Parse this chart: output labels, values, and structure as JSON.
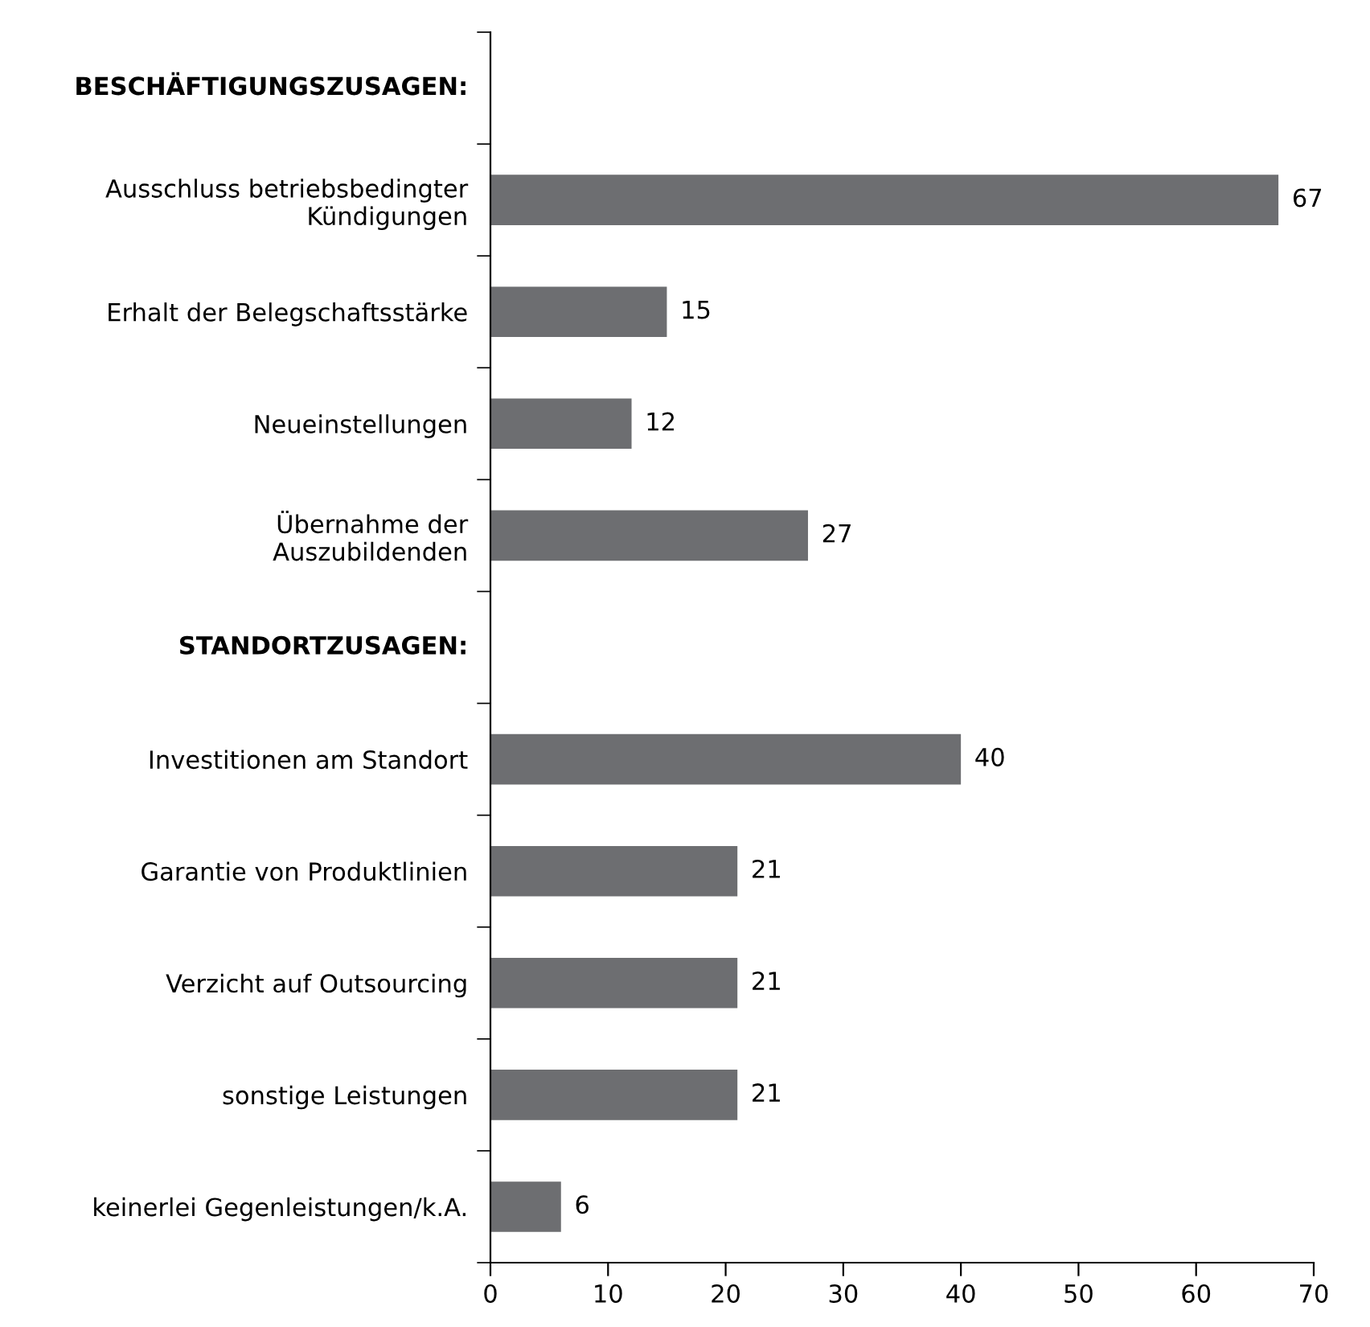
{
  "chart_data": {
    "type": "bar",
    "orientation": "horizontal",
    "categories": [
      null,
      "Ausschluss betriebsbedingter\nKündigungen",
      "Erhalt der Belegschaftsstärke",
      "Neueinstellungen",
      "Übernahme der\nAuszubildenden",
      null,
      "Investitionen am Standort",
      "Garantie von Produktlinien",
      "Verzicht auf Outsourcing",
      "sonstige Leistungen",
      "keinerlei Gegenleistungen/k.A."
    ],
    "values": [
      null,
      67,
      15,
      12,
      27,
      null,
      40,
      21,
      21,
      21,
      6
    ],
    "annotations": [
      "BESCHÄFTIGUNGSZUSAGEN:",
      "STANDORTZUSAGEN:"
    ],
    "color": "#6d6e71",
    "xlim": [
      0,
      70
    ],
    "xticks": [
      0,
      10,
      20,
      30,
      40,
      50,
      60,
      70
    ],
    "data_labels": true,
    "grid": false,
    "legend": false
  }
}
